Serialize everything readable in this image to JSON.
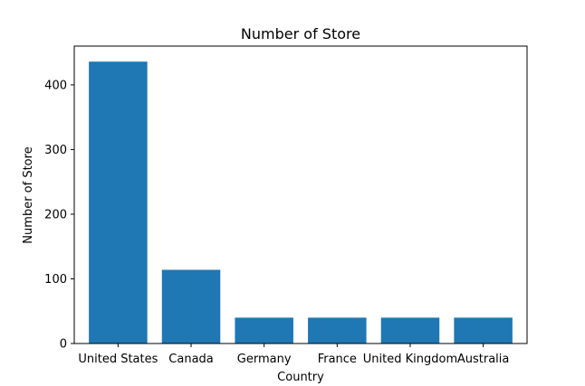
{
  "chart_data": {
    "type": "bar",
    "title": "Number of Store",
    "xlabel": "Country",
    "ylabel": "Number of Store",
    "categories": [
      "United States",
      "Canada",
      "Germany",
      "France",
      "United Kingdom",
      "Australia"
    ],
    "values": [
      436,
      114,
      40,
      40,
      40,
      40
    ],
    "ylim": [
      0,
      460
    ],
    "yticks": [
      0,
      100,
      200,
      300,
      400
    ],
    "grid": false,
    "bar_color": "#1f77b4"
  }
}
